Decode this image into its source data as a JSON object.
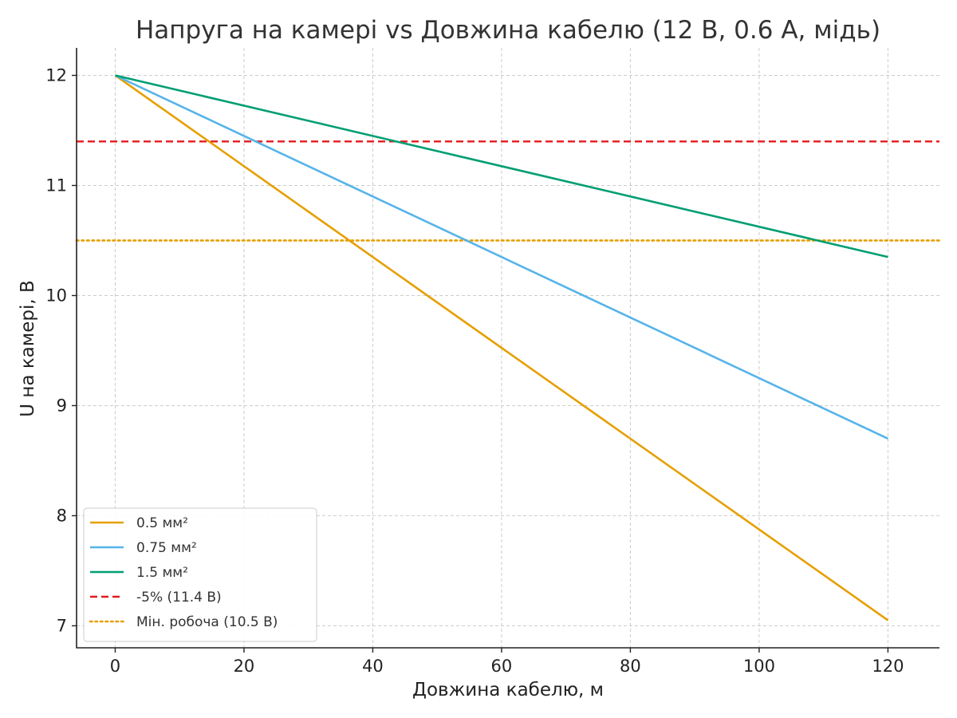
{
  "chart_data": {
    "type": "line",
    "title": "Напруга на камері vs Довжина кабелю (12 В, 0.6 А, мідь)",
    "xlabel": "Довжина кабелю, м",
    "ylabel": "U на камері, В",
    "xlim": [
      -6,
      128
    ],
    "ylim": [
      6.8,
      12.25
    ],
    "xticks": [
      0,
      20,
      40,
      60,
      80,
      100,
      120
    ],
    "yticks": [
      7,
      8,
      9,
      10,
      11,
      12
    ],
    "grid": true,
    "legend_position": "lower-left",
    "series": [
      {
        "name": "0.5 мм²",
        "color": "#E69F00",
        "style": "solid",
        "x": [
          0,
          120
        ],
        "y": [
          12.0,
          7.05
        ]
      },
      {
        "name": "0.75 мм²",
        "color": "#56B4E9",
        "style": "solid",
        "x": [
          0,
          120
        ],
        "y": [
          12.0,
          8.7
        ]
      },
      {
        "name": "1.5 мм²",
        "color": "#009E73",
        "style": "solid",
        "x": [
          0,
          120
        ],
        "y": [
          12.0,
          10.35
        ]
      }
    ],
    "reference_lines": [
      {
        "name": "-5% (11.4 В)",
        "y": 11.4,
        "color": "#E41A1C",
        "style": "dashed"
      },
      {
        "name": "Мін. робоча (10.5 В)",
        "y": 10.5,
        "color": "#E69F00",
        "style": "dotted"
      }
    ]
  }
}
